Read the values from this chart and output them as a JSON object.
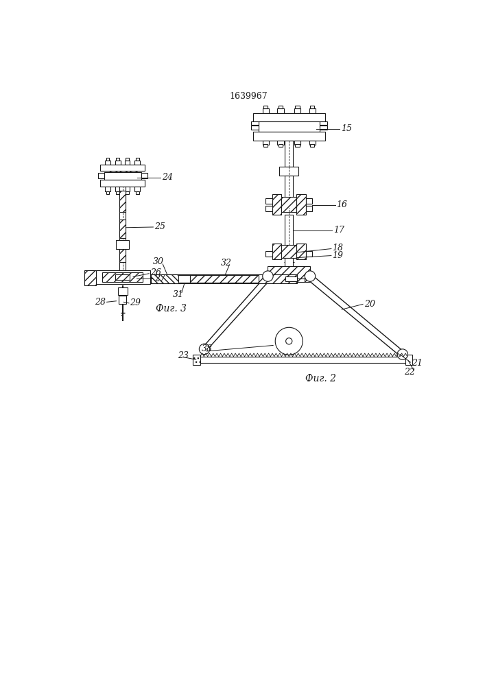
{
  "title": "1639967",
  "fig2_label": "Фиг. 2",
  "fig3_label": "Фиг. 3",
  "bg_color": "#ffffff",
  "line_color": "#1a1a1a"
}
